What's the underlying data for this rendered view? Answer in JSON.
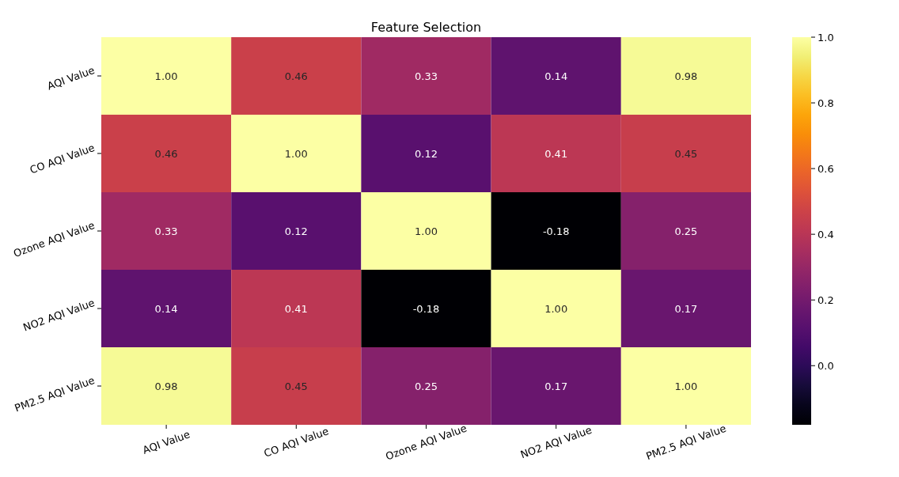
{
  "chart_data": {
    "type": "heatmap",
    "title": "Feature Selection",
    "categories": [
      "AQI Value",
      "CO AQI Value",
      "Ozone AQI Value",
      "NO2 AQI Value",
      "PM2.5 AQI Value"
    ],
    "y_categories": [
      "AQI Value",
      "CO AQI Value",
      "Ozone AQI Value",
      "NO2 AQI Value",
      "PM2.5 AQI Value"
    ],
    "cells": [
      [
        1.0,
        0.46,
        0.33,
        0.14,
        0.98
      ],
      [
        0.46,
        1.0,
        0.12,
        0.41,
        0.45
      ],
      [
        0.33,
        0.12,
        1.0,
        -0.18,
        0.25
      ],
      [
        0.14,
        0.41,
        -0.18,
        1.0,
        0.17
      ],
      [
        0.98,
        0.45,
        0.25,
        0.17,
        1.0
      ]
    ],
    "cell_labels": [
      [
        "1.00",
        "0.46",
        "0.33",
        "0.14",
        "0.98"
      ],
      [
        "0.46",
        "1.00",
        "0.12",
        "0.41",
        "0.45"
      ],
      [
        "0.33",
        "0.12",
        "1.00",
        "-0.18",
        "0.25"
      ],
      [
        "0.14",
        "0.41",
        "-0.18",
        "1.00",
        "0.17"
      ],
      [
        "0.98",
        "0.45",
        "0.25",
        "0.17",
        "1.00"
      ]
    ],
    "clim": [
      -0.18,
      1.0
    ],
    "cticks": [
      {
        "value": 0,
        "label": "0.0"
      },
      {
        "value": 0.2,
        "label": "0.2"
      },
      {
        "value": 0.4,
        "label": "0.4"
      },
      {
        "value": 0.6,
        "label": "0.6"
      },
      {
        "value": 0.8,
        "label": "0.8"
      },
      {
        "value": 1,
        "label": "1.0"
      }
    ]
  }
}
